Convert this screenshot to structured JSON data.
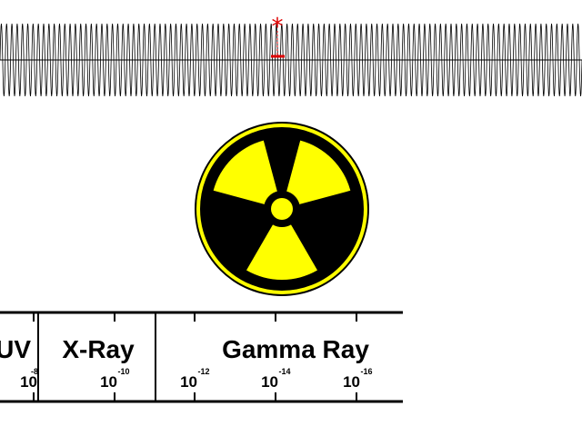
{
  "wave": {
    "cycles": 110,
    "stroke_color": "#000000",
    "marker_glyph": "*",
    "marker_color": "#e00000"
  },
  "radiation_symbol": {
    "icon": "radiation-trefoil-icon",
    "fill_color": "#000000",
    "ring_color": "#ffff00",
    "blade_color": "#ffff00"
  },
  "spectrum": {
    "bands": [
      {
        "label": "UV"
      },
      {
        "label": "X-Ray"
      },
      {
        "label": "Gamma Ray"
      }
    ],
    "ticks": [
      {
        "base": "10",
        "exp": "-8"
      },
      {
        "base": "10",
        "exp": "-10"
      },
      {
        "base": "10",
        "exp": "-12"
      },
      {
        "base": "10",
        "exp": "-14"
      },
      {
        "base": "10",
        "exp": "-16"
      }
    ]
  }
}
